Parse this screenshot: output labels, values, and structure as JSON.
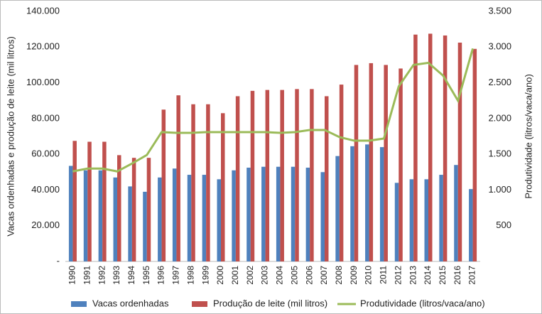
{
  "chart_data": {
    "type": "bar",
    "y_label": "Vacas ordenhadas e produção de leite (mil litros)",
    "y2_label": "Produtividade (litros/vaca/ano)",
    "categories": [
      "1990",
      "1991",
      "1992",
      "1993",
      "1994",
      "1995",
      "1996",
      "1997",
      "1998",
      "1999",
      "2000",
      "2001",
      "2002",
      "2003",
      "2004",
      "2005",
      "2006",
      "2007",
      "2008",
      "2009",
      "2010",
      "2011",
      "2012",
      "2013",
      "2014",
      "2015",
      "2016",
      "2017"
    ],
    "series": [
      {
        "name": "Vacas ordenhadas",
        "color": "#4f81bd",
        "type": "bar",
        "values": [
          53500,
          51000,
          51000,
          47000,
          42000,
          39000,
          47000,
          52000,
          48500,
          48500,
          46000,
          51000,
          52500,
          53000,
          53000,
          53000,
          52500,
          50000,
          59000,
          64500,
          65500,
          64000,
          44000,
          46000,
          46000,
          48500,
          54000,
          40500
        ]
      },
      {
        "name": "Produção de leite (mil litros)",
        "color": "#c0504d",
        "type": "bar",
        "values": [
          67500,
          67000,
          67000,
          59500,
          58000,
          58000,
          85000,
          93000,
          88000,
          88000,
          83000,
          92500,
          95500,
          96000,
          96000,
          96500,
          96500,
          92500,
          99000,
          110000,
          111000,
          110000,
          108000,
          127000,
          127500,
          126500,
          122500,
          119000
        ]
      },
      {
        "name": "Produtividade (litros/vaca/ano)",
        "color": "#9bbb59",
        "type": "line",
        "axis": "y2",
        "values": [
          1260,
          1300,
          1300,
          1260,
          1370,
          1490,
          1810,
          1800,
          1800,
          1810,
          1810,
          1810,
          1810,
          1810,
          1800,
          1810,
          1840,
          1840,
          1740,
          1690,
          1690,
          1720,
          2450,
          2750,
          2780,
          2600,
          2250,
          2980
        ]
      }
    ],
    "ylim": [
      0,
      140000
    ],
    "yticks": [
      {
        "value": 0,
        "label": "-"
      },
      {
        "value": 20000,
        "label": "20.000"
      },
      {
        "value": 40000,
        "label": "40.000"
      },
      {
        "value": 60000,
        "label": "60.000"
      },
      {
        "value": 80000,
        "label": "80.000"
      },
      {
        "value": 100000,
        "label": "100.000"
      },
      {
        "value": 120000,
        "label": "120.000"
      },
      {
        "value": 140000,
        "label": "140.000"
      }
    ],
    "y2lim": [
      0,
      3500
    ],
    "y2ticks": [
      500,
      {
        "value": 1000,
        "label": "1.000"
      },
      {
        "value": 1500,
        "label": "1.500"
      },
      {
        "value": 2000,
        "label": "2.000"
      },
      {
        "value": 2500,
        "label": "2.500"
      },
      {
        "value": 3000,
        "label": "3.000"
      },
      {
        "value": 3500,
        "label": "3.500"
      }
    ],
    "grid": false,
    "legend": "bottom"
  }
}
